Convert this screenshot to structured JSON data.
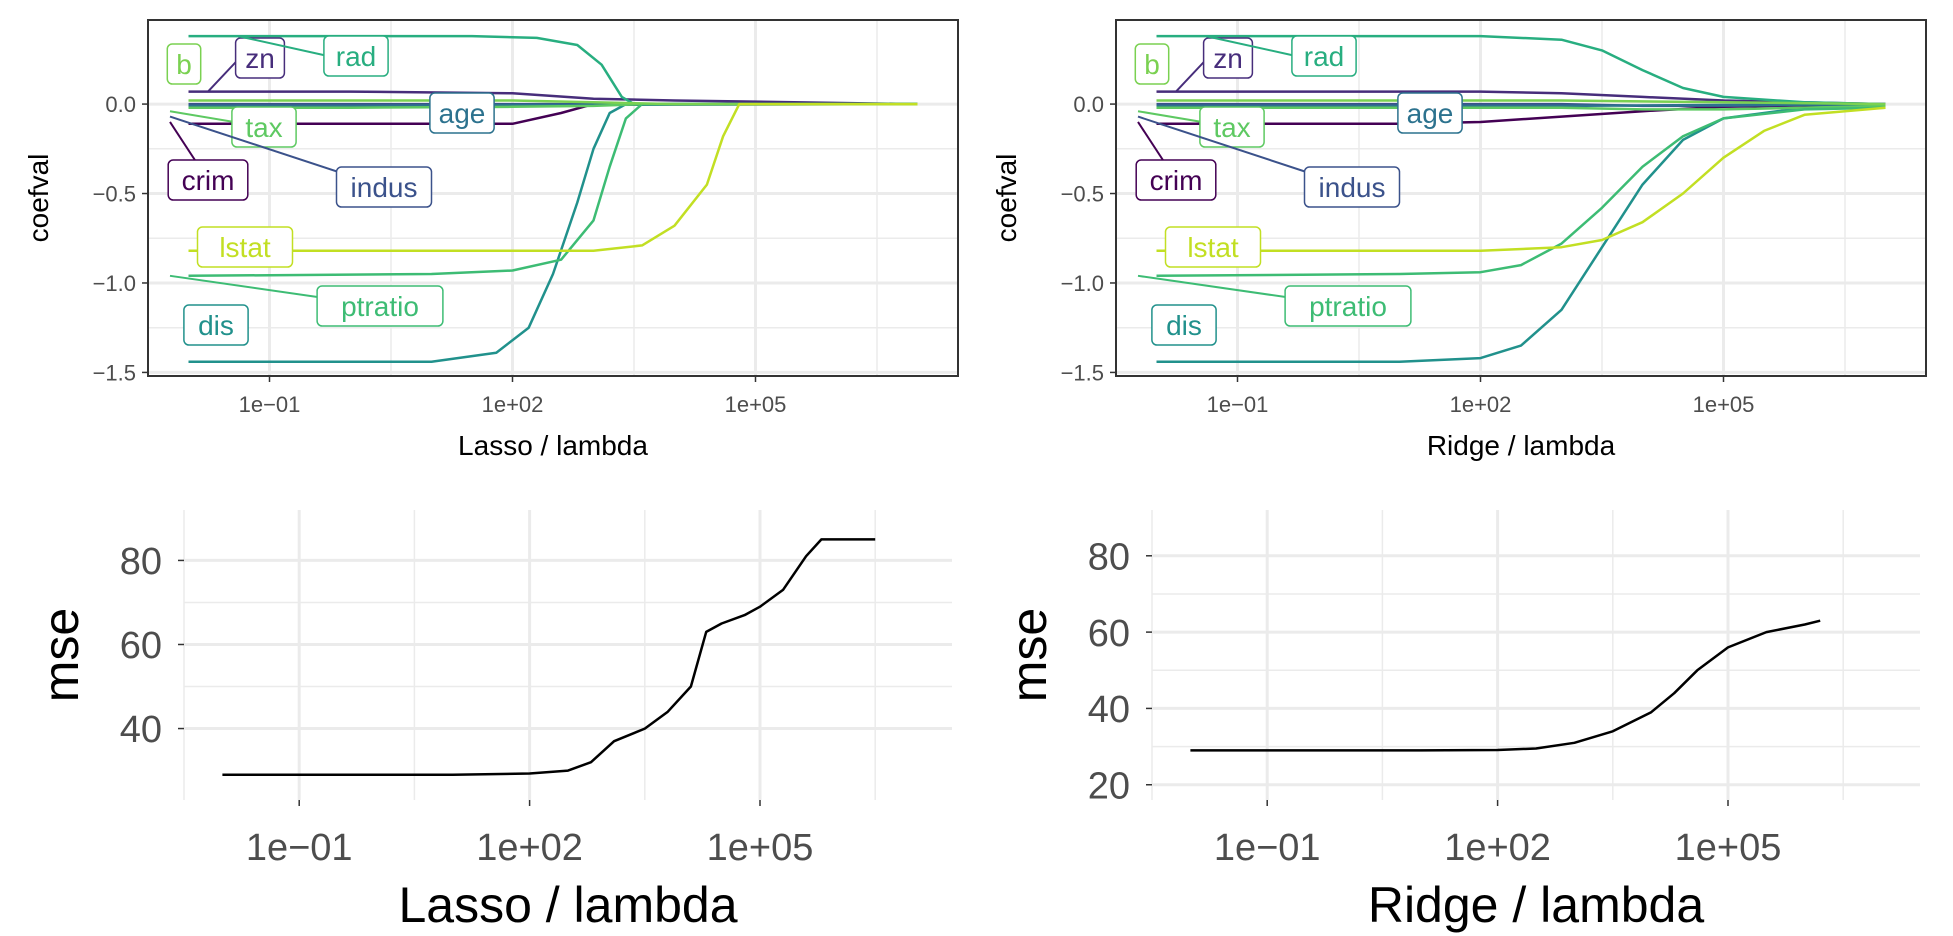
{
  "colors": {
    "crim": "#440154",
    "zn": "#472d7b",
    "indus": "#3b528b",
    "age": "#2c728e",
    "dis": "#21918c",
    "rad": "#28ae80",
    "tax": "#5ec962",
    "ptratio": "#3dbc74",
    "b": "#7ad151",
    "lstat": "#c2df23",
    "mse": "#000000",
    "grid": "#ebebeb",
    "axis_text": "#4d4d4d"
  },
  "chart_data": [
    {
      "type": "line",
      "xscale": "log10",
      "xlabel": "Lasso / lambda",
      "ylabel": "coefval",
      "xticks": [
        "1e−01",
        "1e+02",
        "1e+05"
      ],
      "yticks": [
        "0.0",
        "−0.5",
        "−1.0",
        "−1.5"
      ],
      "xlim_log10": [
        -2.5,
        7.5
      ],
      "ylim": [
        -1.52,
        0.47
      ],
      "grid": true,
      "series": [
        {
          "name": "crim",
          "points": [
            [
              -2,
              -0.11
            ],
            [
              0,
              -0.11
            ],
            [
              2,
              -0.11
            ],
            [
              2.6,
              -0.05
            ],
            [
              3,
              0.0
            ],
            [
              7,
              0.0
            ]
          ]
        },
        {
          "name": "zn",
          "points": [
            [
              -2,
              0.07
            ],
            [
              0,
              0.07
            ],
            [
              2,
              0.06
            ],
            [
              3,
              0.03
            ],
            [
              4,
              0.02
            ],
            [
              7,
              0.0
            ]
          ]
        },
        {
          "name": "indus",
          "points": [
            [
              -2,
              0.0
            ],
            [
              0,
              0.0
            ],
            [
              2,
              0.0
            ],
            [
              7,
              0.0
            ]
          ]
        },
        {
          "name": "age",
          "points": [
            [
              -2,
              -0.01
            ],
            [
              0,
              -0.01
            ],
            [
              2,
              -0.005
            ],
            [
              7,
              0.0
            ]
          ]
        },
        {
          "name": "dis",
          "points": [
            [
              -2,
              -1.44
            ],
            [
              1,
              -1.44
            ],
            [
              1.8,
              -1.39
            ],
            [
              2.2,
              -1.25
            ],
            [
              2.5,
              -0.95
            ],
            [
              2.8,
              -0.55
            ],
            [
              3,
              -0.25
            ],
            [
              3.2,
              -0.05
            ],
            [
              3.4,
              0.0
            ],
            [
              7,
              0.0
            ]
          ]
        },
        {
          "name": "rad",
          "points": [
            [
              -2,
              0.38
            ],
            [
              0,
              0.38
            ],
            [
              1.5,
              0.38
            ],
            [
              2.3,
              0.37
            ],
            [
              2.8,
              0.33
            ],
            [
              3.1,
              0.22
            ],
            [
              3.35,
              0.04
            ],
            [
              3.5,
              0.0
            ],
            [
              7,
              0.0
            ]
          ]
        },
        {
          "name": "tax",
          "points": [
            [
              -2,
              -0.02
            ],
            [
              0,
              -0.02
            ],
            [
              2,
              -0.015
            ],
            [
              3,
              -0.01
            ],
            [
              3.6,
              0.0
            ],
            [
              7,
              0.0
            ]
          ]
        },
        {
          "name": "ptratio",
          "points": [
            [
              -2,
              -0.96
            ],
            [
              1,
              -0.95
            ],
            [
              2,
              -0.93
            ],
            [
              2.6,
              -0.87
            ],
            [
              3,
              -0.65
            ],
            [
              3.2,
              -0.35
            ],
            [
              3.4,
              -0.08
            ],
            [
              3.6,
              0.0
            ],
            [
              7,
              0.0
            ]
          ]
        },
        {
          "name": "b",
          "points": [
            [
              -2,
              0.02
            ],
            [
              0,
              0.02
            ],
            [
              2,
              0.02
            ],
            [
              3,
              0.01
            ],
            [
              4,
              0.0
            ],
            [
              7,
              0.0
            ]
          ]
        },
        {
          "name": "lstat",
          "points": [
            [
              -2,
              -0.82
            ],
            [
              0,
              -0.82
            ],
            [
              3,
              -0.82
            ],
            [
              3.6,
              -0.79
            ],
            [
              4,
              -0.68
            ],
            [
              4.4,
              -0.45
            ],
            [
              4.6,
              -0.18
            ],
            [
              4.8,
              0.0
            ],
            [
              7,
              0.0
            ]
          ]
        }
      ],
      "labels": [
        {
          "name": "b",
          "text": "b"
        },
        {
          "name": "zn",
          "text": "zn"
        },
        {
          "name": "rad",
          "text": "rad"
        },
        {
          "name": "tax",
          "text": "tax"
        },
        {
          "name": "age",
          "text": "age"
        },
        {
          "name": "crim",
          "text": "crim"
        },
        {
          "name": "indus",
          "text": "indus"
        },
        {
          "name": "lstat",
          "text": "lstat"
        },
        {
          "name": "ptratio",
          "text": "ptratio"
        },
        {
          "name": "dis",
          "text": "dis"
        }
      ]
    },
    {
      "type": "line",
      "xscale": "log10",
      "xlabel": "Ridge / lambda",
      "ylabel": "coefval",
      "xticks": [
        "1e−01",
        "1e+02",
        "1e+05"
      ],
      "yticks": [
        "0.0",
        "−0.5",
        "−1.0",
        "−1.5"
      ],
      "xlim_log10": [
        -2.5,
        7.5
      ],
      "ylim": [
        -1.52,
        0.47
      ],
      "grid": true,
      "series": [
        {
          "name": "crim",
          "points": [
            [
              -2,
              -0.11
            ],
            [
              1,
              -0.11
            ],
            [
              2,
              -0.1
            ],
            [
              3,
              -0.07
            ],
            [
              4,
              -0.04
            ],
            [
              5,
              -0.015
            ],
            [
              7,
              0.0
            ]
          ]
        },
        {
          "name": "zn",
          "points": [
            [
              -2,
              0.07
            ],
            [
              2,
              0.07
            ],
            [
              3,
              0.06
            ],
            [
              4,
              0.04
            ],
            [
              5,
              0.02
            ],
            [
              7,
              0.0
            ]
          ]
        },
        {
          "name": "indus",
          "points": [
            [
              -2,
              0.0
            ],
            [
              3,
              0.0
            ],
            [
              4,
              -0.01
            ],
            [
              5,
              -0.01
            ],
            [
              7,
              0.0
            ]
          ]
        },
        {
          "name": "age",
          "points": [
            [
              -2,
              -0.01
            ],
            [
              3,
              -0.01
            ],
            [
              5,
              -0.005
            ],
            [
              7,
              0.0
            ]
          ]
        },
        {
          "name": "dis",
          "points": [
            [
              -2,
              -1.44
            ],
            [
              1,
              -1.44
            ],
            [
              2,
              -1.42
            ],
            [
              2.5,
              -1.35
            ],
            [
              3,
              -1.15
            ],
            [
              3.5,
              -0.8
            ],
            [
              4,
              -0.45
            ],
            [
              4.5,
              -0.2
            ],
            [
              5,
              -0.08
            ],
            [
              6,
              -0.02
            ],
            [
              7,
              -0.01
            ]
          ]
        },
        {
          "name": "rad",
          "points": [
            [
              -2,
              0.38
            ],
            [
              2,
              0.38
            ],
            [
              3,
              0.36
            ],
            [
              3.5,
              0.3
            ],
            [
              4,
              0.19
            ],
            [
              4.5,
              0.09
            ],
            [
              5,
              0.04
            ],
            [
              6,
              0.01
            ],
            [
              7,
              0.0
            ]
          ]
        },
        {
          "name": "tax",
          "points": [
            [
              -2,
              -0.02
            ],
            [
              3,
              -0.02
            ],
            [
              4,
              -0.03
            ],
            [
              5,
              -0.03
            ],
            [
              6,
              -0.02
            ],
            [
              7,
              -0.01
            ]
          ]
        },
        {
          "name": "ptratio",
          "points": [
            [
              -2,
              -0.96
            ],
            [
              1,
              -0.95
            ],
            [
              2,
              -0.94
            ],
            [
              2.5,
              -0.9
            ],
            [
              3,
              -0.78
            ],
            [
              3.5,
              -0.58
            ],
            [
              4,
              -0.35
            ],
            [
              4.5,
              -0.18
            ],
            [
              5,
              -0.08
            ],
            [
              6,
              -0.03
            ],
            [
              7,
              -0.02
            ]
          ]
        },
        {
          "name": "b",
          "points": [
            [
              -2,
              0.02
            ],
            [
              3,
              0.02
            ],
            [
              5,
              0.01
            ],
            [
              7,
              0.0
            ]
          ]
        },
        {
          "name": "lstat",
          "points": [
            [
              -2,
              -0.82
            ],
            [
              2,
              -0.82
            ],
            [
              3,
              -0.8
            ],
            [
              3.5,
              -0.76
            ],
            [
              4,
              -0.66
            ],
            [
              4.5,
              -0.5
            ],
            [
              5,
              -0.3
            ],
            [
              5.5,
              -0.15
            ],
            [
              6,
              -0.06
            ],
            [
              7,
              -0.02
            ]
          ]
        }
      ],
      "labels": [
        {
          "name": "b",
          "text": "b"
        },
        {
          "name": "zn",
          "text": "zn"
        },
        {
          "name": "rad",
          "text": "rad"
        },
        {
          "name": "tax",
          "text": "tax"
        },
        {
          "name": "age",
          "text": "age"
        },
        {
          "name": "crim",
          "text": "crim"
        },
        {
          "name": "indus",
          "text": "indus"
        },
        {
          "name": "lstat",
          "text": "lstat"
        },
        {
          "name": "ptratio",
          "text": "ptratio"
        },
        {
          "name": "dis",
          "text": "dis"
        }
      ]
    },
    {
      "type": "line",
      "xscale": "log10",
      "xlabel": "Lasso / lambda",
      "ylabel": "mse",
      "xticks": [
        "1e−01",
        "1e+02",
        "1e+05"
      ],
      "yticks": [
        "80",
        "60",
        "40"
      ],
      "xlim_log10": [
        -2.5,
        7.5
      ],
      "ylim": [
        23,
        92
      ],
      "grid": true,
      "series": [
        {
          "name": "mse",
          "points": [
            [
              -2,
              29
            ],
            [
              0,
              29
            ],
            [
              1,
              29
            ],
            [
              2,
              29.3
            ],
            [
              2.5,
              30
            ],
            [
              2.8,
              32
            ],
            [
              3.1,
              37
            ],
            [
              3.5,
              40
            ],
            [
              3.8,
              44
            ],
            [
              4.1,
              50
            ],
            [
              4.3,
              63
            ],
            [
              4.5,
              65
            ],
            [
              4.8,
              67
            ],
            [
              5,
              69
            ],
            [
              5.3,
              73
            ],
            [
              5.6,
              81
            ],
            [
              5.8,
              85
            ],
            [
              6.2,
              85
            ],
            [
              6.5,
              85
            ]
          ]
        }
      ]
    },
    {
      "type": "line",
      "xscale": "log10",
      "xlabel": "Ridge / lambda",
      "ylabel": "mse",
      "xticks": [
        "1e−01",
        "1e+02",
        "1e+05"
      ],
      "yticks": [
        "80",
        "60",
        "40",
        "20"
      ],
      "xlim_log10": [
        -2.5,
        7.5
      ],
      "ylim": [
        16,
        92
      ],
      "grid": true,
      "series": [
        {
          "name": "mse",
          "points": [
            [
              -2,
              29
            ],
            [
              0,
              29
            ],
            [
              1,
              29
            ],
            [
              2,
              29.1
            ],
            [
              2.5,
              29.5
            ],
            [
              3,
              31
            ],
            [
              3.5,
              34
            ],
            [
              4,
              39
            ],
            [
              4.3,
              44
            ],
            [
              4.6,
              50
            ],
            [
              5,
              56
            ],
            [
              5.5,
              60
            ],
            [
              6,
              62
            ],
            [
              6.2,
              63
            ]
          ]
        }
      ]
    }
  ]
}
